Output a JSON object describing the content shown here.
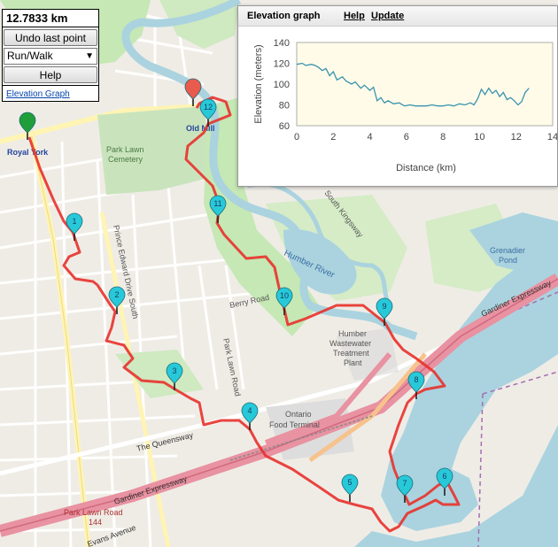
{
  "controls": {
    "distance": "12.7833 km",
    "undo_label": "Undo last point",
    "mode_value": "Run/Walk",
    "help_label": "Help",
    "elevation_link": "Elevation Graph"
  },
  "elevation_panel": {
    "title": "Elevation graph",
    "help_label": "Help",
    "update_label": "Update"
  },
  "chart_data": {
    "type": "line",
    "xlabel": "Distance (km)",
    "ylabel": "Elevation (meters)",
    "xlim": [
      0,
      14
    ],
    "ylim": [
      60,
      140
    ],
    "xticks": [
      "0",
      "2",
      "4",
      "6",
      "8",
      "10",
      "12",
      "14"
    ],
    "yticks": [
      "60",
      "80",
      "100",
      "120",
      "140"
    ],
    "grid": false,
    "series": [
      {
        "color": "#3a93b0",
        "x": [
          0,
          0.3,
          0.5,
          0.8,
          1.0,
          1.2,
          1.4,
          1.6,
          1.8,
          2.0,
          2.2,
          2.5,
          2.7,
          3.0,
          3.2,
          3.5,
          3.7,
          4.0,
          4.2,
          4.4,
          4.6,
          4.8,
          5.0,
          5.3,
          5.6,
          5.9,
          6.2,
          6.5,
          6.8,
          7.1,
          7.4,
          7.7,
          8.0,
          8.3,
          8.6,
          8.9,
          9.2,
          9.5,
          9.7,
          9.9,
          10.1,
          10.3,
          10.5,
          10.7,
          10.9,
          11.1,
          11.3,
          11.5,
          11.7,
          11.9,
          12.1,
          12.3,
          12.5,
          12.7
        ],
        "y": [
          119,
          120,
          118,
          119,
          118,
          116,
          113,
          115,
          108,
          112,
          104,
          107,
          103,
          100,
          102,
          96,
          99,
          94,
          97,
          84,
          87,
          82,
          84,
          81,
          82,
          79,
          80,
          79,
          79,
          79,
          80,
          79,
          79,
          80,
          79,
          81,
          80,
          82,
          80,
          86,
          95,
          90,
          96,
          91,
          94,
          88,
          92,
          85,
          87,
          84,
          80,
          83,
          92,
          96
        ]
      }
    ]
  },
  "map": {
    "place_labels": {
      "royal_york": "Royal York",
      "old_mill": "Old Mill",
      "park_lawn_cemetery_1": "Park Lawn",
      "park_lawn_cemetery_2": "Cemetery",
      "prince_edward": "Prince Edward Drive South",
      "park_lawn_road": "Park Lawn Road",
      "berry_road": "Berry Road",
      "south_kingsway": "South Kingsway",
      "humber_river": "Humber River",
      "humber_ww_1": "Humber",
      "humber_ww_2": "Wastewater",
      "humber_ww_3": "Treatment",
      "humber_ww_4": "Plant",
      "grenadier_1": "Grenadier",
      "grenadier_2": "Pond",
      "gardiner_east": "Gardiner Expressway",
      "gardiner_west": "Gardiner Expressway",
      "queensway": "The Queensway",
      "ontario_food_1": "Ontario",
      "ontario_food_2": "Food Terminal",
      "park_lawn_rd_144_1": "Park Lawn Road",
      "park_lawn_rd_144_2": "144",
      "evans_avenue": "Evans Avenue"
    },
    "markers": [
      "1",
      "2",
      "3",
      "4",
      "5",
      "6",
      "7",
      "8",
      "9",
      "10",
      "11",
      "12"
    ],
    "colors": {
      "route": "#e8312b",
      "start_marker": "#1f9e3a",
      "end_marker": "#e85b4d",
      "waypoint_marker": "#27c9d9",
      "water": "#aad3df",
      "park": "#c8e6b7",
      "expressway": "#e892a2"
    }
  }
}
